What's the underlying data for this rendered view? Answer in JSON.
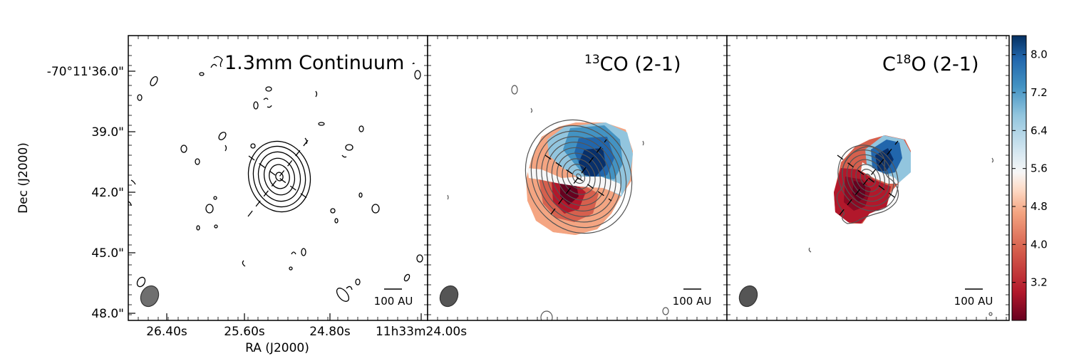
{
  "chart_data": {
    "type": "heatmap",
    "xlabel": "RA (J2000)",
    "ylabel": "Dec (J2000)",
    "x_tick_labels": [
      "26.40s",
      "25.60s",
      "24.80s",
      "11h33m24.00s"
    ],
    "y_tick_labels": [
      "-70°11'36.0\"",
      "39.0\"",
      "42.0\"",
      "45.0\"",
      "48.0\""
    ],
    "y_tick_values_arcsec": [
      36.0,
      39.0,
      42.0,
      45.0,
      48.0
    ],
    "panels": [
      {
        "id": "continuum",
        "title_main": "1.3mm Continuum",
        "title_sup": "",
        "title_suffix": "",
        "scalebar": "100 AU",
        "map": "contours-only"
      },
      {
        "id": "13co",
        "title_main": "CO (2-1)",
        "title_sup": "13",
        "title_suffix": "",
        "scalebar": "100 AU",
        "map": "velocity",
        "extent": "large"
      },
      {
        "id": "c18o",
        "title_main": "C",
        "title_sup": "18",
        "title_suffix": "O (2-1)",
        "scalebar": "100 AU",
        "map": "velocity",
        "extent": "compact"
      }
    ],
    "colorbar": {
      "tick_labels": [
        "8.0",
        "7.2",
        "6.4",
        "5.6",
        "4.8",
        "4.0",
        "3.2"
      ],
      "tick_values": [
        8.0,
        7.2,
        6.4,
        5.6,
        4.8,
        4.0,
        3.2
      ],
      "range": [
        2.4,
        8.4
      ],
      "cmap": "RdBu",
      "low_color": "#67001f",
      "high_color": "#053061"
    },
    "grid": false
  }
}
